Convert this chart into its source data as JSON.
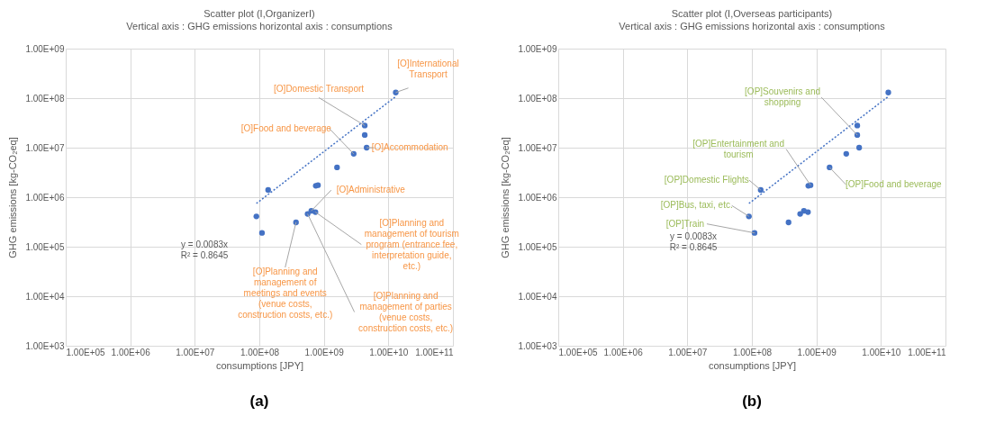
{
  "chart_data": [
    {
      "type": "scatter",
      "title": "Scatter plot (I,OrganizerI)",
      "subtitle": "Vertical axis : GHG emissions     horizontal axis :  consumptions",
      "xlabel": "consumptions [JPY]",
      "ylabel": "GHG emissions [kg-CO₂eq]",
      "log": "xy",
      "grid": true,
      "xlim": [
        100000,
        100000000000
      ],
      "ylim": [
        1000,
        1000000000
      ],
      "xticks": [
        {
          "value": 100000,
          "label": "1.00E+05"
        },
        {
          "value": 1000000,
          "label": "1.00E+06"
        },
        {
          "value": 10000000,
          "label": "1.00E+07"
        },
        {
          "value": 100000000,
          "label": "1.00E+08"
        },
        {
          "value": 1000000000,
          "label": "1.00E+09"
        },
        {
          "value": 10000000000,
          "label": "1.00E+10"
        },
        {
          "value": 100000000000,
          "label": "1.00E+11"
        }
      ],
      "yticks": [
        {
          "value": 1000,
          "label": "1.00E+03"
        },
        {
          "value": 10000,
          "label": "1.00E+04"
        },
        {
          "value": 100000,
          "label": "1.00E+05"
        },
        {
          "value": 1000000,
          "label": "1.00E+06"
        },
        {
          "value": 10000000,
          "label": "1.00E+07"
        },
        {
          "value": 100000000,
          "label": "1.00E+08"
        },
        {
          "value": 1000000000,
          "label": "1.00E+09"
        }
      ],
      "series": [
        {
          "color": "#4472c4",
          "marker": "circle",
          "x": [
            13000000000,
            4300000000,
            4300000000,
            4600000000,
            2900000000,
            1600000000,
            750000000,
            810000000,
            137000000,
            90000000,
            110000000,
            370000000,
            560000000,
            640000000,
            740000000
          ],
          "values": [
            130000000,
            28000000,
            18000000,
            10000000,
            7500000,
            4000000,
            1700000,
            1750000,
            1400000,
            410000,
            190000,
            310000,
            460000,
            530000,
            500000
          ]
        },
        {
          "type": "line",
          "color": "#4472c4",
          "marker": "none",
          "line_style": "dotted",
          "x": [
            90000000,
            13000000000
          ],
          "values": [
            747000,
            107900000
          ]
        }
      ],
      "annotations": [
        {
          "text": "[O]International\nTransport",
          "x": 13000000000,
          "y": 130000000
        },
        {
          "text": "[O]Domestic Transport",
          "x": 4300000000,
          "y": 28000000
        },
        {
          "text": "[O]Food and beverage",
          "x": 2900000000,
          "y": 7500000
        },
        {
          "text": "[O]Accommodation",
          "x": 4600000000,
          "y": 10000000
        },
        {
          "text": "[O]Administrative",
          "x": 640000000,
          "y": 530000
        },
        {
          "text": "[O]Planning and\nmanagement of tourism\nprogram (entrance fee,\ninterpretation guide,\netc.)",
          "x": 740000000,
          "y": 500000
        },
        {
          "text": "[O]Planning and\nmanagement of\nmeetings and events\n(venue costs,\nconstruction costs, etc.)",
          "x": 370000000,
          "y": 310000
        },
        {
          "text": "[O]Planning and\nmanagement of parties\n(venue costs,\nconstruction costs, etc.)",
          "x": 560000000,
          "y": 460000
        },
        "y = 0.0083x\nR² = 0.8645",
        "(a)"
      ]
    },
    {
      "type": "scatter",
      "title": "Scatter plot (I,Overseas participants)",
      "subtitle": "Vertical axis : GHG emissions     horizontal axis :  consumptions",
      "xlabel": "consumptions [JPY]",
      "ylabel": "GHG emissions [kg-CO₂eq]",
      "log": "xy",
      "grid": true,
      "xlim": [
        100000,
        100000000000
      ],
      "ylim": [
        1000,
        1000000000
      ],
      "xticks": [
        {
          "value": 100000,
          "label": "1.00E+05"
        },
        {
          "value": 1000000,
          "label": "1.00E+06"
        },
        {
          "value": 10000000,
          "label": "1.00E+07"
        },
        {
          "value": 100000000,
          "label": "1.00E+08"
        },
        {
          "value": 1000000000,
          "label": "1.00E+09"
        },
        {
          "value": 10000000000,
          "label": "1.00E+10"
        },
        {
          "value": 100000000000,
          "label": "1.00E+11"
        }
      ],
      "yticks": [
        {
          "value": 1000,
          "label": "1.00E+03"
        },
        {
          "value": 10000,
          "label": "1.00E+04"
        },
        {
          "value": 100000,
          "label": "1.00E+05"
        },
        {
          "value": 1000000,
          "label": "1.00E+06"
        },
        {
          "value": 10000000,
          "label": "1.00E+07"
        },
        {
          "value": 100000000,
          "label": "1.00E+08"
        },
        {
          "value": 1000000000,
          "label": "1.00E+09"
        }
      ],
      "series": [
        {
          "color": "#4472c4",
          "marker": "circle",
          "x": [
            13000000000,
            4300000000,
            4300000000,
            4600000000,
            2900000000,
            1600000000,
            750000000,
            810000000,
            137000000,
            90000000,
            110000000,
            370000000,
            560000000,
            640000000,
            740000000
          ],
          "values": [
            130000000,
            28000000,
            18000000,
            10000000,
            7500000,
            4000000,
            1700000,
            1750000,
            1400000,
            410000,
            190000,
            310000,
            460000,
            530000,
            500000
          ]
        },
        {
          "type": "line",
          "color": "#4472c4",
          "marker": "none",
          "line_style": "dotted",
          "x": [
            90000000,
            13000000000
          ],
          "values": [
            747000,
            107900000
          ]
        }
      ],
      "annotations": [
        {
          "text": "[OP]Souvenirs and\nshopping",
          "x": 4300000000,
          "y": 18000000
        },
        {
          "text": "[OP]Entertainment and\ntourism",
          "x": 810000000,
          "y": 1750000
        },
        {
          "text": "[OP]Domestic Flights",
          "x": 137000000,
          "y": 1400000
        },
        {
          "text": "[OP]Food and beverage",
          "x": 1600000000,
          "y": 4000000
        },
        {
          "text": "[OP]Bus, taxi, etc.",
          "x": 90000000,
          "y": 410000
        },
        {
          "text": "[OP]Train",
          "x": 110000000,
          "y": 190000
        },
        "y = 0.0083x\nR² = 0.8645",
        "(b)"
      ]
    }
  ]
}
